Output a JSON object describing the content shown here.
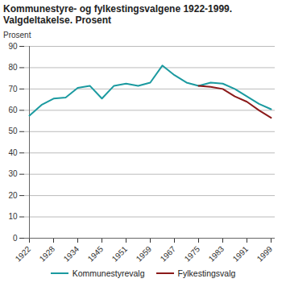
{
  "chart_data": {
    "type": "line",
    "title": "Kommunestyre- og fylkestingsvalgene 1922-1999. Valgdeltakelse. Prosent",
    "y_label": "Prosent",
    "categories": [
      "1922",
      null,
      "1928",
      null,
      "1934",
      null,
      "1945",
      null,
      "1951",
      null,
      "1959",
      null,
      "1967",
      null,
      "1975",
      null,
      "1983",
      null,
      "1991",
      null,
      "1999"
    ],
    "series": [
      {
        "name": "Kommunestyrevalg",
        "color": "#1b9aa0",
        "values": [
          57.5,
          62.5,
          65.5,
          66,
          70.5,
          71.5,
          65.5,
          71.5,
          72.5,
          71.5,
          73,
          81,
          76.5,
          73,
          71.5,
          73,
          72.5,
          70,
          66.5,
          63,
          60.5
        ]
      },
      {
        "name": "Fylkestingsvalg",
        "color": "#8b1a1a",
        "values": [
          null,
          null,
          null,
          null,
          null,
          null,
          null,
          null,
          null,
          null,
          null,
          null,
          null,
          null,
          71.5,
          71,
          70,
          66.5,
          64,
          60,
          56.5
        ]
      }
    ],
    "ylim": [
      0,
      90
    ],
    "yticks": [
      0,
      10,
      20,
      30,
      40,
      50,
      60,
      70,
      80,
      90
    ],
    "grid": true,
    "legend": "bottom"
  }
}
